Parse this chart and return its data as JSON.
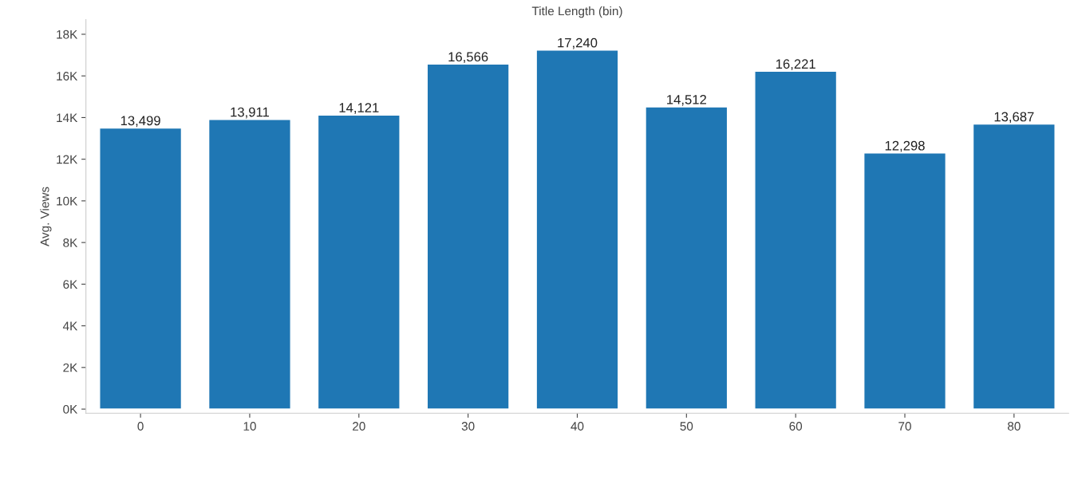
{
  "chart_data": {
    "type": "bar",
    "xlabel": "Title Length (bin)",
    "ylabel": "Avg. Views",
    "categories": [
      "0",
      "10",
      "20",
      "30",
      "40",
      "50",
      "60",
      "70",
      "80"
    ],
    "values": [
      13499,
      13911,
      14121,
      16566,
      17240,
      14512,
      16221,
      12298,
      13687
    ],
    "value_labels": [
      "13,499",
      "13,911",
      "14,121",
      "16,566",
      "17,240",
      "14,512",
      "16,221",
      "12,298",
      "13,687"
    ],
    "color": "#1f77b4",
    "ylim": [
      -200,
      18700
    ],
    "yticks": [
      {
        "value": 0,
        "label": "0K"
      },
      {
        "value": 2000,
        "label": "2K"
      },
      {
        "value": 4000,
        "label": "4K"
      },
      {
        "value": 6000,
        "label": "6K"
      },
      {
        "value": 8000,
        "label": "8K"
      },
      {
        "value": 10000,
        "label": "10K"
      },
      {
        "value": 12000,
        "label": "12K"
      },
      {
        "value": 14000,
        "label": "14K"
      },
      {
        "value": 16000,
        "label": "16K"
      },
      {
        "value": 18000,
        "label": "18K"
      }
    ],
    "grid": false
  }
}
